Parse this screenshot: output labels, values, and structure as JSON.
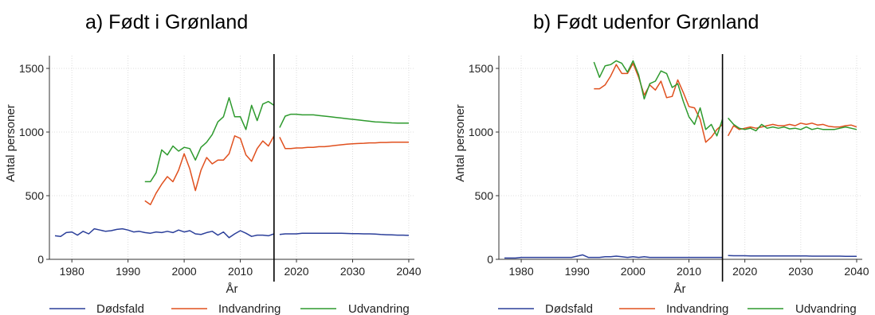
{
  "chart_data": [
    {
      "type": "line",
      "title": "a)   Født i Grønland",
      "xlabel": "År",
      "ylabel": "Antal personer",
      "xlim": [
        1976,
        2041
      ],
      "ylim": [
        0,
        1600
      ],
      "xticks": [
        1980,
        1990,
        2000,
        2010,
        2020,
        2030,
        2040
      ],
      "yticks": [
        0,
        500,
        1000,
        1500
      ],
      "grid": true,
      "legend_position": "bottom",
      "projection_start": 2016,
      "series": [
        {
          "name": "Dødsfald",
          "color": "#2b3f9a",
          "segments": [
            {
              "x": [
                1977,
                1978,
                1979,
                1980,
                1981,
                1982,
                1983,
                1984,
                1985,
                1986,
                1987,
                1988,
                1989,
                1990,
                1991,
                1992,
                1993,
                1994,
                1995,
                1996,
                1997,
                1998,
                1999,
                2000,
                2001,
                2002,
                2003,
                2004,
                2005,
                2006,
                2007,
                2008,
                2009,
                2010,
                2011,
                2012,
                2013,
                2014,
                2015,
                2016
              ],
              "y": [
                185,
                180,
                210,
                215,
                190,
                220,
                200,
                240,
                230,
                220,
                225,
                235,
                240,
                230,
                215,
                220,
                210,
                205,
                215,
                210,
                220,
                210,
                230,
                215,
                225,
                200,
                195,
                210,
                220,
                190,
                215,
                170,
                200,
                225,
                205,
                180,
                190,
                190,
                185,
                200
              ]
            },
            {
              "x": [
                2017,
                2018,
                2019,
                2020,
                2021,
                2022,
                2023,
                2024,
                2025,
                2026,
                2027,
                2028,
                2029,
                2030,
                2031,
                2032,
                2033,
                2034,
                2035,
                2036,
                2037,
                2038,
                2039,
                2040
              ],
              "y": [
                195,
                200,
                200,
                200,
                205,
                205,
                205,
                205,
                205,
                205,
                205,
                205,
                203,
                202,
                202,
                200,
                200,
                198,
                195,
                193,
                192,
                190,
                190,
                188
              ]
            }
          ]
        },
        {
          "name": "Indvandring",
          "color": "#e0501e",
          "segments": [
            {
              "x": [
                1993,
                1994,
                1995,
                1996,
                1997,
                1998,
                1999,
                2000,
                2001,
                2002,
                2003,
                2004,
                2005,
                2006,
                2007,
                2008,
                2009,
                2010,
                2011,
                2012,
                2013,
                2014,
                2015,
                2016
              ],
              "y": [
                460,
                430,
                520,
                590,
                650,
                610,
                700,
                830,
                710,
                540,
                700,
                800,
                750,
                780,
                780,
                830,
                970,
                950,
                820,
                770,
                870,
                930,
                890,
                970
              ]
            },
            {
              "x": [
                2017,
                2018,
                2019,
                2020,
                2021,
                2022,
                2023,
                2024,
                2025,
                2026,
                2027,
                2028,
                2029,
                2030,
                2031,
                2032,
                2033,
                2034,
                2035,
                2036,
                2037,
                2038,
                2039,
                2040
              ],
              "y": [
                960,
                870,
                870,
                875,
                875,
                880,
                880,
                885,
                885,
                890,
                895,
                900,
                905,
                908,
                910,
                912,
                915,
                915,
                918,
                918,
                920,
                920,
                920,
                920
              ]
            }
          ]
        },
        {
          "name": "Udvandring",
          "color": "#2e9a2e",
          "segments": [
            {
              "x": [
                1993,
                1994,
                1995,
                1996,
                1997,
                1998,
                1999,
                2000,
                2001,
                2002,
                2003,
                2004,
                2005,
                2006,
                2007,
                2008,
                2009,
                2010,
                2011,
                2012,
                2013,
                2014,
                2015,
                2016
              ],
              "y": [
                610,
                610,
                680,
                860,
                820,
                890,
                850,
                880,
                870,
                780,
                880,
                920,
                980,
                1080,
                1120,
                1270,
                1120,
                1120,
                1020,
                1210,
                1090,
                1220,
                1240,
                1210
              ]
            },
            {
              "x": [
                2017,
                2018,
                2019,
                2020,
                2021,
                2022,
                2023,
                2024,
                2025,
                2026,
                2027,
                2028,
                2029,
                2030,
                2031,
                2032,
                2033,
                2034,
                2035,
                2036,
                2037,
                2038,
                2039,
                2040
              ],
              "y": [
                1035,
                1125,
                1140,
                1140,
                1135,
                1135,
                1135,
                1130,
                1125,
                1120,
                1115,
                1110,
                1105,
                1100,
                1095,
                1090,
                1085,
                1080,
                1078,
                1075,
                1072,
                1070,
                1070,
                1070
              ]
            }
          ]
        }
      ]
    },
    {
      "type": "line",
      "title": "b)   Født udenfor Grønland",
      "xlabel": "År",
      "ylabel": "Antal personer",
      "xlim": [
        1976,
        2041
      ],
      "ylim": [
        0,
        1600
      ],
      "xticks": [
        1980,
        1990,
        2000,
        2010,
        2020,
        2030,
        2040
      ],
      "yticks": [
        0,
        500,
        1000,
        1500
      ],
      "grid": true,
      "legend_position": "bottom",
      "projection_start": 2016,
      "series": [
        {
          "name": "Dødsfald",
          "color": "#2b3f9a",
          "segments": [
            {
              "x": [
                1977,
                1978,
                1979,
                1980,
                1981,
                1982,
                1983,
                1984,
                1985,
                1986,
                1987,
                1988,
                1989,
                1990,
                1991,
                1992,
                1993,
                1994,
                1995,
                1996,
                1997,
                1998,
                1999,
                2000,
                2001,
                2002,
                2003,
                2004,
                2005,
                2006,
                2007,
                2008,
                2009,
                2010,
                2011,
                2012,
                2013,
                2014,
                2015,
                2016
              ],
              "y": [
                10,
                10,
                10,
                15,
                15,
                15,
                15,
                15,
                15,
                15,
                15,
                15,
                15,
                25,
                35,
                15,
                15,
                15,
                20,
                20,
                25,
                20,
                15,
                20,
                15,
                20,
                15,
                15,
                15,
                15,
                15,
                15,
                15,
                15,
                15,
                15,
                15,
                15,
                15,
                15
              ]
            },
            {
              "x": [
                2017,
                2018,
                2019,
                2020,
                2021,
                2022,
                2023,
                2024,
                2025,
                2026,
                2027,
                2028,
                2029,
                2030,
                2031,
                2032,
                2033,
                2034,
                2035,
                2036,
                2037,
                2038,
                2039,
                2040
              ],
              "y": [
                30,
                28,
                28,
                28,
                27,
                27,
                27,
                27,
                27,
                27,
                27,
                26,
                26,
                26,
                26,
                25,
                25,
                25,
                25,
                25,
                25,
                24,
                24,
                24
              ]
            }
          ]
        },
        {
          "name": "Indvandring",
          "color": "#e0501e",
          "segments": [
            {
              "x": [
                1993,
                1994,
                1995,
                1996,
                1997,
                1998,
                1999,
                2000,
                2001,
                2002,
                2003,
                2004,
                2005,
                2006,
                2007,
                2008,
                2009,
                2010,
                2011,
                2012,
                2013,
                2014,
                2015,
                2016
              ],
              "y": [
                1340,
                1340,
                1370,
                1440,
                1530,
                1460,
                1460,
                1540,
                1430,
                1290,
                1370,
                1330,
                1400,
                1270,
                1280,
                1410,
                1310,
                1200,
                1190,
                1100,
                920,
                960,
                1020,
                1060
              ]
            },
            {
              "x": [
                2017,
                2018,
                2019,
                2020,
                2021,
                2022,
                2023,
                2024,
                2025,
                2026,
                2027,
                2028,
                2029,
                2030,
                2031,
                2032,
                2033,
                2034,
                2035,
                2036,
                2037,
                2038,
                2039,
                2040
              ],
              "y": [
                970,
                1050,
                1020,
                1030,
                1040,
                1030,
                1040,
                1050,
                1060,
                1050,
                1050,
                1060,
                1050,
                1070,
                1060,
                1070,
                1055,
                1060,
                1045,
                1040,
                1040,
                1050,
                1055,
                1040
              ]
            }
          ]
        },
        {
          "name": "Udvandring",
          "color": "#2e9a2e",
          "segments": [
            {
              "x": [
                1993,
                1994,
                1995,
                1996,
                1997,
                1998,
                1999,
                2000,
                2001,
                2002,
                2003,
                2004,
                2005,
                2006,
                2007,
                2008,
                2009,
                2010,
                2011,
                2012,
                2013,
                2014,
                2015,
                2016
              ],
              "y": [
                1550,
                1430,
                1520,
                1530,
                1560,
                1540,
                1470,
                1560,
                1450,
                1260,
                1380,
                1400,
                1480,
                1460,
                1350,
                1380,
                1240,
                1120,
                1060,
                1190,
                1020,
                1060,
                970,
                1100
              ]
            },
            {
              "x": [
                2017,
                2018,
                2019,
                2020,
                2021,
                2022,
                2023,
                2024,
                2025,
                2026,
                2027,
                2028,
                2029,
                2030,
                2031,
                2032,
                2033,
                2034,
                2035,
                2036,
                2037,
                2038,
                2039,
                2040
              ],
              "y": [
                1110,
                1060,
                1030,
                1020,
                1030,
                1010,
                1060,
                1030,
                1040,
                1030,
                1040,
                1025,
                1030,
                1020,
                1040,
                1020,
                1030,
                1020,
                1020,
                1020,
                1030,
                1040,
                1030,
                1020
              ]
            }
          ]
        }
      ]
    }
  ]
}
